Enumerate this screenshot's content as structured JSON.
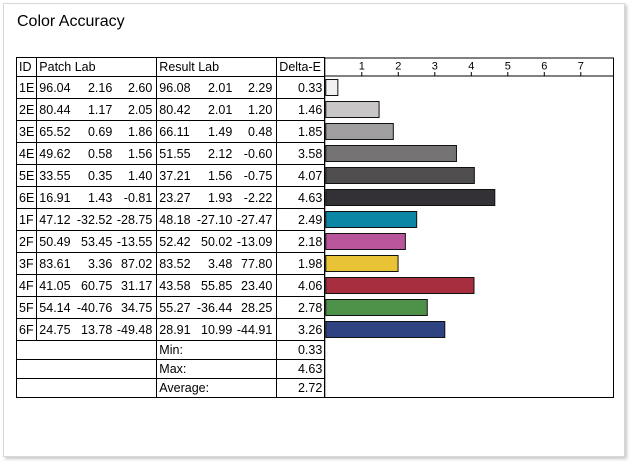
{
  "title": "Color Accuracy",
  "table": {
    "headers": {
      "id": "ID",
      "patch": "Patch Lab",
      "result": "Result Lab",
      "delta": "Delta-E"
    },
    "rows": [
      {
        "id": "1E",
        "patch": [
          "96.04",
          "2.16",
          "2.60"
        ],
        "result": [
          "96.08",
          "2.01",
          "2.29"
        ],
        "delta": "0.33"
      },
      {
        "id": "2E",
        "patch": [
          "80.44",
          "1.17",
          "2.05"
        ],
        "result": [
          "80.42",
          "2.01",
          "1.20"
        ],
        "delta": "1.46"
      },
      {
        "id": "3E",
        "patch": [
          "65.52",
          "0.69",
          "1.86"
        ],
        "result": [
          "66.11",
          "1.49",
          "0.48"
        ],
        "delta": "1.85"
      },
      {
        "id": "4E",
        "patch": [
          "49.62",
          "0.58",
          "1.56"
        ],
        "result": [
          "51.55",
          "2.12",
          "-0.60"
        ],
        "delta": "3.58"
      },
      {
        "id": "5E",
        "patch": [
          "33.55",
          "0.35",
          "1.40"
        ],
        "result": [
          "37.21",
          "1.56",
          "-0.75"
        ],
        "delta": "4.07"
      },
      {
        "id": "6E",
        "patch": [
          "16.91",
          "1.43",
          "-0.81"
        ],
        "result": [
          "23.27",
          "1.93",
          "-2.22"
        ],
        "delta": "4.63"
      },
      {
        "id": "1F",
        "patch": [
          "47.12",
          "-32.52",
          "-28.75"
        ],
        "result": [
          "48.18",
          "-27.10",
          "-27.47"
        ],
        "delta": "2.49"
      },
      {
        "id": "2F",
        "patch": [
          "50.49",
          "53.45",
          "-13.55"
        ],
        "result": [
          "52.42",
          "50.02",
          "-13.09"
        ],
        "delta": "2.18"
      },
      {
        "id": "3F",
        "patch": [
          "83.61",
          "3.36",
          "87.02"
        ],
        "result": [
          "83.52",
          "3.48",
          "77.80"
        ],
        "delta": "1.98"
      },
      {
        "id": "4F",
        "patch": [
          "41.05",
          "60.75",
          "31.17"
        ],
        "result": [
          "43.58",
          "55.85",
          "23.40"
        ],
        "delta": "4.06"
      },
      {
        "id": "5F",
        "patch": [
          "54.14",
          "-40.76",
          "34.75"
        ],
        "result": [
          "55.27",
          "-36.44",
          "28.25"
        ],
        "delta": "2.78"
      },
      {
        "id": "6F",
        "patch": [
          "24.75",
          "13.78",
          "-49.48"
        ],
        "result": [
          "28.91",
          "10.99",
          "-44.91"
        ],
        "delta": "3.26"
      }
    ],
    "summary": [
      {
        "label": "Min:",
        "value": "0.33"
      },
      {
        "label": "Max:",
        "value": "4.63"
      },
      {
        "label": "Average:",
        "value": "2.72"
      }
    ]
  },
  "chart_data": {
    "type": "bar",
    "orientation": "horizontal",
    "categories": [
      "1E",
      "2E",
      "3E",
      "4E",
      "5E",
      "6E",
      "1F",
      "2F",
      "3F",
      "4F",
      "5F",
      "6F"
    ],
    "values": [
      0.33,
      1.46,
      1.85,
      3.58,
      4.07,
      4.63,
      2.49,
      2.18,
      1.98,
      4.06,
      2.78,
      3.26
    ],
    "colors": [
      "#f3f1f0",
      "#c8c6c6",
      "#a09e9f",
      "#767374",
      "#4f4d4e",
      "#333136",
      "#0c86a5",
      "#b9559b",
      "#e8c335",
      "#a62e3f",
      "#4e9148",
      "#2f4282"
    ],
    "xticks": [
      "1",
      "2",
      "3",
      "4",
      "5",
      "6",
      "7"
    ],
    "xlim": [
      0,
      8
    ],
    "grid": false,
    "xlabel": "",
    "ylabel": ""
  }
}
